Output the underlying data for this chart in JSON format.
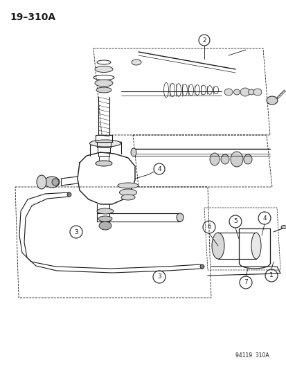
{
  "title": "19–310A",
  "watermark": "94119  310A",
  "bg_color": "#ffffff",
  "line_color": "#1a1a1a",
  "fig_width": 4.14,
  "fig_height": 5.33,
  "dpi": 100
}
